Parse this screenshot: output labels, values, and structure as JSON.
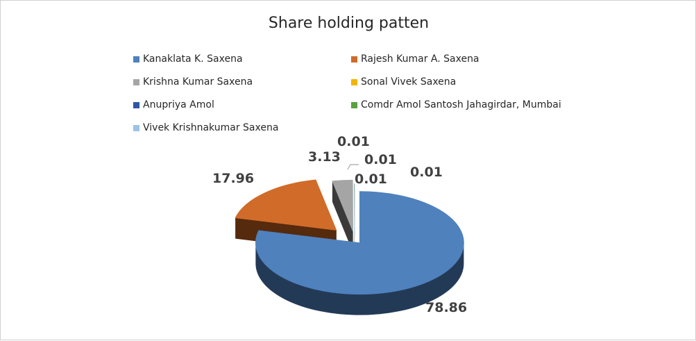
{
  "chart_data": {
    "type": "pie",
    "title": "Share holding patten",
    "legend_placement": "top",
    "slices": [
      {
        "label": "Kanaklata K. Saxena",
        "value": 78.86,
        "display": "78.86",
        "color": "#4f81bd",
        "side_color": "#233a57"
      },
      {
        "label": "Rajesh Kumar A. Saxena",
        "value": 17.96,
        "display": "17.96",
        "color": "#d06b2a",
        "side_color": "#552a0d"
      },
      {
        "label": "Krishna Kumar Saxena",
        "value": 3.13,
        "display": "3.13",
        "color": "#a5a5a5",
        "side_color": "#3a3a3a"
      },
      {
        "label": "Sonal Vivek Saxena",
        "value": 0.01,
        "display": "0.01",
        "color": "#f2b600",
        "side_color": "#6e5200"
      },
      {
        "label": "Anupriya Amol",
        "value": 0.01,
        "display": "0.01",
        "color": "#2f55a4",
        "side_color": "#142448"
      },
      {
        "label": "Comdr Amol Santosh Jahagirdar, Mumbai",
        "value": 0.01,
        "display": "0.01",
        "color": "#5aa141",
        "side_color": "#244219"
      },
      {
        "label": "Vivek Krishnakumar Saxena",
        "value": 0.01,
        "display": "0.01",
        "color": "#9dc3e6",
        "side_color": "#4a6a88"
      }
    ]
  }
}
